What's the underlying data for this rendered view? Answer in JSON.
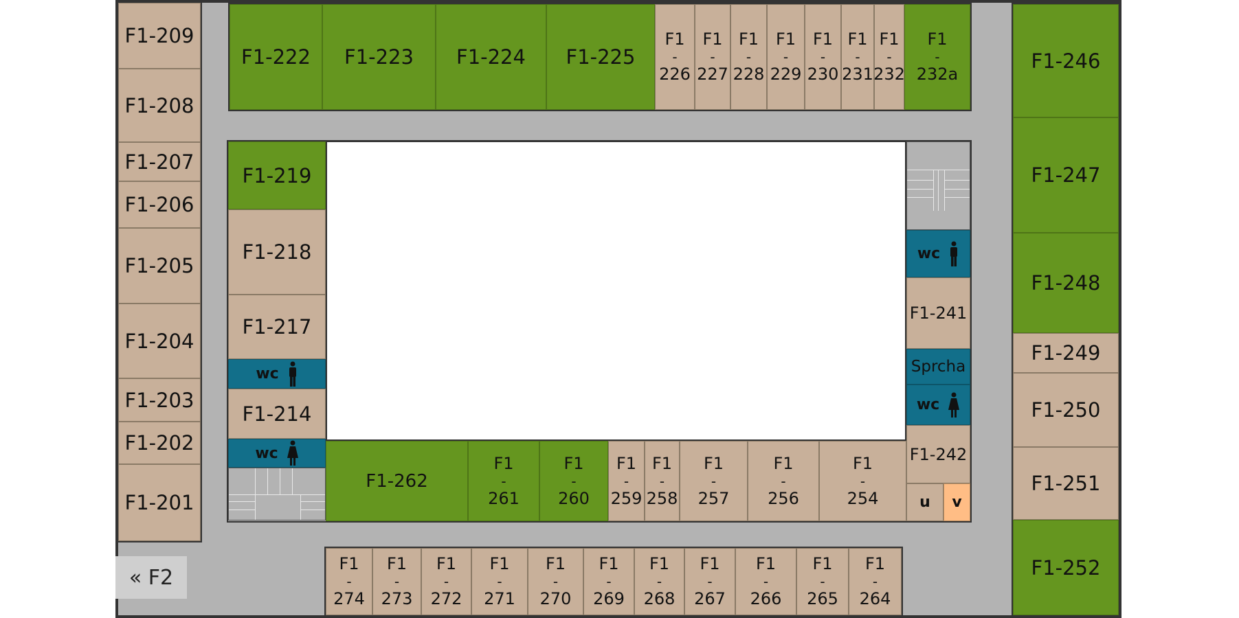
{
  "colors": {
    "tan": "#c8b09a",
    "green": "#65961f",
    "teal": "#126f8a",
    "corridor": "#b3b3b3",
    "orange": "#ffbd85"
  },
  "left_column": [
    "F1-209",
    "F1-208",
    "F1-207",
    "F1-206",
    "F1-205",
    "F1-204",
    "F1-203",
    "F1-202",
    "F1-201"
  ],
  "top_row": {
    "big": [
      "F1-222",
      "F1-223",
      "F1-224",
      "F1-225"
    ],
    "small": [
      {
        "prefix": "F1",
        "dash": "-",
        "num": "226"
      },
      {
        "prefix": "F1",
        "dash": "-",
        "num": "227"
      },
      {
        "prefix": "F1",
        "dash": "-",
        "num": "228"
      },
      {
        "prefix": "F1",
        "dash": "-",
        "num": "229"
      },
      {
        "prefix": "F1",
        "dash": "-",
        "num": "230"
      },
      {
        "prefix": "F1",
        "dash": "-",
        "num": "231"
      },
      {
        "prefix": "F1",
        "dash": "-",
        "num": "232"
      },
      {
        "prefix": "F1",
        "dash": "-",
        "num": "232a"
      }
    ]
  },
  "right_column": [
    "F1-246",
    "F1-247",
    "F1-248",
    "F1-249",
    "F1-250",
    "F1-251",
    "F1-252"
  ],
  "inner_left": {
    "r219": "F1-219",
    "r218": "F1-218",
    "r217": "F1-217",
    "wc1": "wc",
    "r214": "F1-214",
    "wc2": "wc"
  },
  "inner_right": {
    "wc1": "wc",
    "r241": "F1-241",
    "shower": "Sprcha",
    "wc2": "wc",
    "r242": "F1-242",
    "u": "u",
    "v": "v"
  },
  "inner_bottom": {
    "r262": "F1-262",
    "small": [
      {
        "prefix": "F1",
        "dash": "-",
        "num": "261"
      },
      {
        "prefix": "F1",
        "dash": "-",
        "num": "260"
      },
      {
        "prefix": "F1",
        "dash": "-",
        "num": "259"
      },
      {
        "prefix": "F1",
        "dash": "-",
        "num": "258"
      },
      {
        "prefix": "F1",
        "dash": "-",
        "num": "257"
      },
      {
        "prefix": "F1",
        "dash": "-",
        "num": "256"
      },
      {
        "prefix": "F1",
        "dash": "-",
        "num": "254"
      }
    ]
  },
  "bottom_row": [
    {
      "prefix": "F1",
      "dash": "-",
      "num": "274"
    },
    {
      "prefix": "F1",
      "dash": "-",
      "num": "273"
    },
    {
      "prefix": "F1",
      "dash": "-",
      "num": "272"
    },
    {
      "prefix": "F1",
      "dash": "-",
      "num": "271"
    },
    {
      "prefix": "F1",
      "dash": "-",
      "num": "270"
    },
    {
      "prefix": "F1",
      "dash": "-",
      "num": "269"
    },
    {
      "prefix": "F1",
      "dash": "-",
      "num": "268"
    },
    {
      "prefix": "F1",
      "dash": "-",
      "num": "267"
    },
    {
      "prefix": "F1",
      "dash": "-",
      "num": "266"
    },
    {
      "prefix": "F1",
      "dash": "-",
      "num": "265"
    },
    {
      "prefix": "F1",
      "dash": "-",
      "num": "264"
    }
  ],
  "exit_label": "« F2"
}
